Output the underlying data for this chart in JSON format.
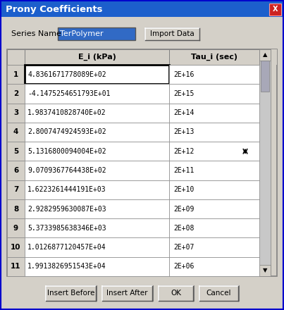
{
  "title": "Prony Coefficients",
  "title_bar_color": "#1C5FCC",
  "title_text_color": "#FFFFFF",
  "dialog_bg": "#D4D0C8",
  "series_name_label": "Series Name",
  "series_name_value": "TerPolymer",
  "series_name_bg": "#316AC5",
  "series_name_text_color": "#FFFFFF",
  "import_btn": "Import Data",
  "col_headers": [
    "E_i (kPa)",
    "Tau_i (sec)"
  ],
  "row_labels": [
    "1",
    "2",
    "3",
    "4",
    "5",
    "6",
    "7",
    "8",
    "9",
    "10",
    "11"
  ],
  "ei_values": [
    "4.8361671778089E+02",
    "-4.1475254651793E+01",
    "1.9837410828740E+02",
    "2.8007474924593E+02",
    "5.1316800094004E+02",
    "9.0709367764438E+02",
    "1.6223261444191E+03",
    "2.9282959630087E+03",
    "5.3733985638346E+03",
    "1.0126877120457E+04",
    "1.9913826951543E+04"
  ],
  "tau_values": [
    "2E+16",
    "2E+15",
    "2E+14",
    "2E+13",
    "2E+12",
    "2E+11",
    "2E+10",
    "2E+09",
    "2E+08",
    "2E+07",
    "2E+06"
  ],
  "bottom_buttons": [
    "Insert Before",
    "Insert After",
    "OK",
    "Cancel"
  ],
  "close_btn_color": "#CC2222",
  "outer_border_color": "#0000CC"
}
